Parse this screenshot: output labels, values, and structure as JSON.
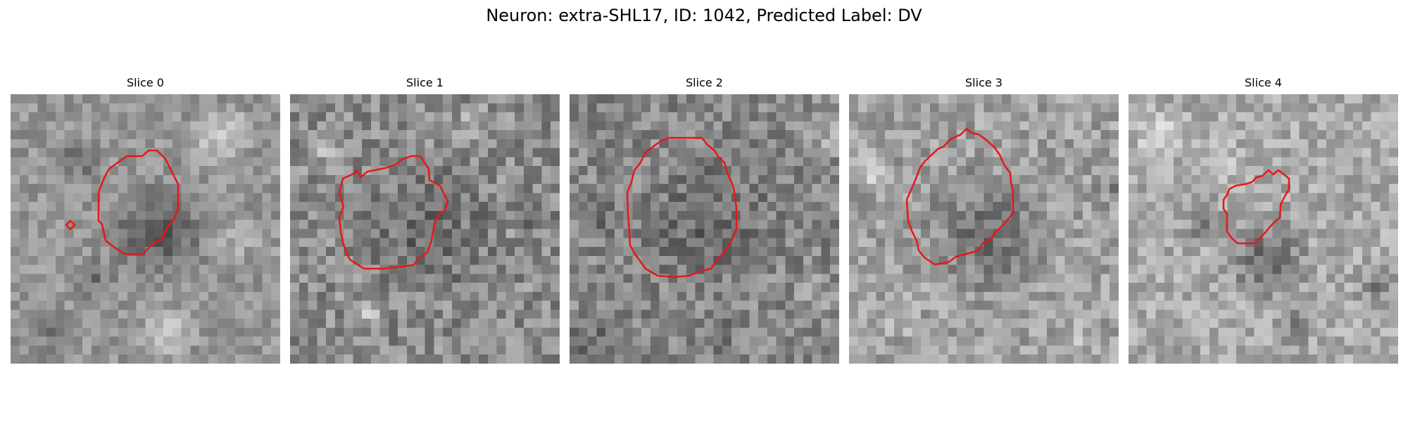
{
  "figure": {
    "title": "Neuron: extra-SHL17, ID: 1042, Predicted Label: DV",
    "contour_color": "#e8161b"
  },
  "slices": [
    {
      "title": "Slice 0"
    },
    {
      "title": "Slice 1"
    },
    {
      "title": "Slice 2"
    },
    {
      "title": "Slice 3"
    },
    {
      "title": "Slice 4"
    }
  ]
}
